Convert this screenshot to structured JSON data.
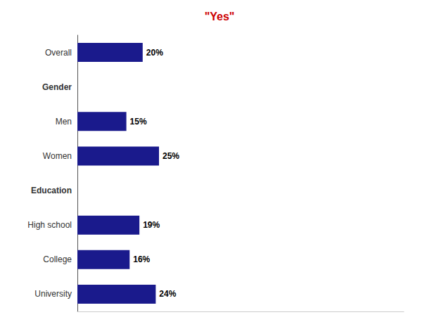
{
  "chart_data": {
    "type": "bar",
    "title": "\"Yes\"",
    "orientation": "horizontal",
    "categories": [
      "Overall",
      "Gender",
      "Men",
      "Women",
      "Education",
      "High school",
      "College",
      "University"
    ],
    "values": [
      20,
      null,
      15,
      25,
      null,
      19,
      16,
      24
    ],
    "value_labels": [
      "20%",
      null,
      "15%",
      "25%",
      null,
      "19%",
      "16%",
      "24%"
    ],
    "color": "#1a1a8c",
    "xlim": [
      0,
      100
    ],
    "data_labels": true,
    "grid": false,
    "tick_labels": "y"
  }
}
